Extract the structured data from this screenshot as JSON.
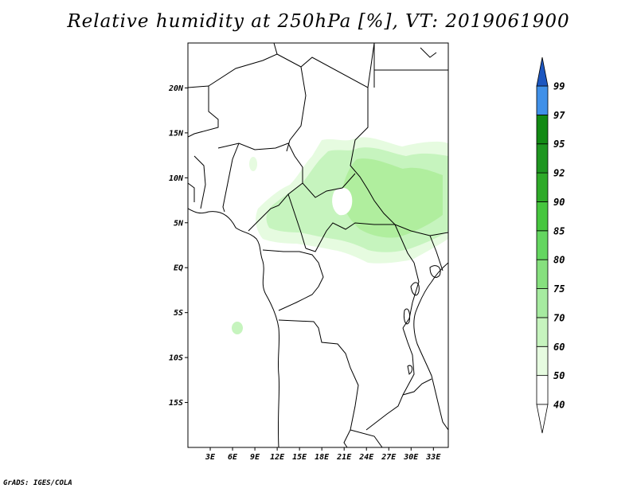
{
  "title": "Relative humidity at 250hPa [%], VT: 2019061900",
  "credit": "GrADS: IGES/COLA",
  "map": {
    "lon_range": [
      0,
      35
    ],
    "lat_range": [
      -20,
      25
    ],
    "lat_ticks": [
      {
        "value": 20,
        "label": "20N"
      },
      {
        "value": 15,
        "label": "15N"
      },
      {
        "value": 10,
        "label": "10N"
      },
      {
        "value": 5,
        "label": "5N"
      },
      {
        "value": 0,
        "label": "EQ"
      },
      {
        "value": -5,
        "label": "5S"
      },
      {
        "value": -10,
        "label": "10S"
      },
      {
        "value": -15,
        "label": "15S"
      }
    ],
    "lon_ticks": [
      {
        "value": 3,
        "label": "3E"
      },
      {
        "value": 6,
        "label": "6E"
      },
      {
        "value": 9,
        "label": "9E"
      },
      {
        "value": 12,
        "label": "12E"
      },
      {
        "value": 15,
        "label": "15E"
      },
      {
        "value": 18,
        "label": "18E"
      },
      {
        "value": 21,
        "label": "21E"
      },
      {
        "value": 24,
        "label": "24E"
      },
      {
        "value": 27,
        "label": "27E"
      },
      {
        "value": 30,
        "label": "30E"
      },
      {
        "value": 33,
        "label": "33E"
      }
    ]
  },
  "colorbar": {
    "levels": [
      {
        "label": "40",
        "color": "#ffffff"
      },
      {
        "label": "50",
        "color": "#e6fbe0"
      },
      {
        "label": "60",
        "color": "#c6f4be"
      },
      {
        "label": "70",
        "color": "#a6eba0"
      },
      {
        "label": "75",
        "color": "#86e07e"
      },
      {
        "label": "80",
        "color": "#64d660"
      },
      {
        "label": "85",
        "color": "#46c63e"
      },
      {
        "label": "90",
        "color": "#2eaa28"
      },
      {
        "label": "92",
        "color": "#1e9620"
      },
      {
        "label": "95",
        "color": "#128a14"
      },
      {
        "label": "97",
        "color": "#4090e8"
      },
      {
        "label": "99",
        "color": "#2a6ed8"
      }
    ],
    "top_color": "#1c56c0",
    "bottom_color": "#ffffff"
  }
}
